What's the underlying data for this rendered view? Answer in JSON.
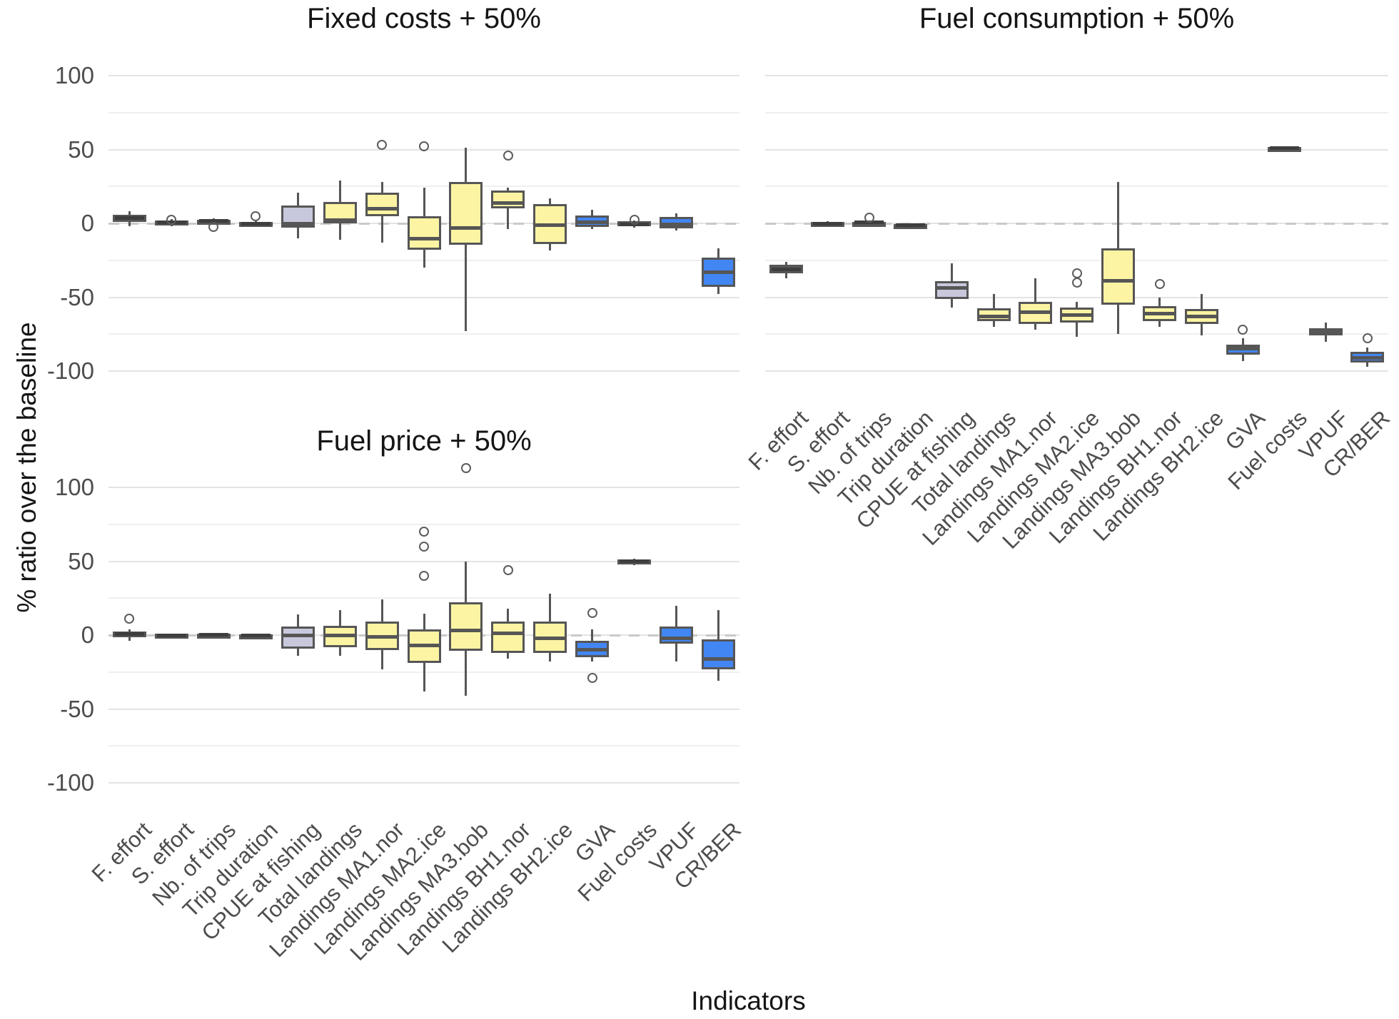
{
  "figure": {
    "y_axis_title": "% ratio over the baseline",
    "x_axis_title": "Indicators",
    "y_ticks": [
      100,
      50,
      0,
      -50,
      -100
    ],
    "y_gridlines": [
      -100,
      -75,
      -50,
      -25,
      0,
      25,
      50,
      75,
      100
    ],
    "categories": [
      "F. effort",
      "S. effort",
      "Nb. of trips",
      "Trip duration",
      "CPUE at fishing",
      "Total landings",
      "Landings MA1.nor",
      "Landings MA2.ice",
      "Landings MA3.bob",
      "Landings BH1.nor",
      "Landings BH2.ice",
      "GVA",
      "Fuel costs",
      "VPUF",
      "CR/BER"
    ],
    "category_fill": [
      "dark",
      "dark",
      "dark",
      "dark",
      "lavender",
      "yellow",
      "yellow",
      "yellow",
      "yellow",
      "yellow",
      "yellow",
      "blue",
      "dark",
      "blue",
      "blue"
    ],
    "colors": {
      "dark": "#595959",
      "lavender": "#c7c8dc",
      "yellow": "#fcf4a3",
      "blue": "#4286f4",
      "border": "#565656",
      "median_on_dark": "#3e3e3e",
      "grid_major": "#e3e3e3",
      "grid_minor": "#efefef",
      "baseline_dash": "#c9c9c9",
      "outlier_stroke": "#5c5c5c",
      "tick_text": "#4d4d4d",
      "title_text": "#151515",
      "background": "#ffffff"
    }
  },
  "chart_data": [
    {
      "type": "box",
      "title": "Fixed costs + 50%",
      "position": "top-left",
      "ylim": [
        -120,
        122
      ],
      "grid": true,
      "baseline": 0,
      "boxes": [
        {
          "category": "F. effort",
          "low": -2,
          "q1": 1,
          "median": 3.5,
          "q3": 6,
          "high": 8,
          "outliers": []
        },
        {
          "category": "S. effort",
          "low": -2,
          "q1": -1,
          "median": 0.5,
          "q3": 2,
          "high": 3,
          "outliers": [
            2.5
          ]
        },
        {
          "category": "Nb. of trips",
          "low": 0,
          "q1": 0.8,
          "median": 1.7,
          "q3": 2.5,
          "high": 3.2,
          "outliers": [
            -2.5
          ]
        },
        {
          "category": "Trip duration",
          "low": -2.2,
          "q1": -1.5,
          "median": -0.2,
          "q3": 0.8,
          "high": 1.5,
          "outliers": [
            4.8
          ]
        },
        {
          "category": "CPUE at fishing",
          "low": -10,
          "q1": -3,
          "median": 0,
          "q3": 12,
          "high": 21,
          "outliers": []
        },
        {
          "category": "Total landings",
          "low": -11,
          "q1": 0,
          "median": 2,
          "q3": 14.5,
          "high": 29,
          "outliers": []
        },
        {
          "category": "Landings MA1.nor",
          "low": -13,
          "q1": 5,
          "median": 10,
          "q3": 21,
          "high": 28,
          "outliers": [
            53
          ]
        },
        {
          "category": "Landings MA2.ice",
          "low": -30,
          "q1": -18,
          "median": -10.5,
          "q3": 5,
          "high": 24,
          "outliers": [
            52
          ]
        },
        {
          "category": "Landings MA3.bob",
          "low": -73,
          "q1": -14.5,
          "median": -3,
          "q3": 28,
          "high": 51,
          "outliers": []
        },
        {
          "category": "Landings BH1.nor",
          "low": -4,
          "q1": 10,
          "median": 14,
          "q3": 22,
          "high": 24,
          "outliers": [
            46
          ]
        },
        {
          "category": "Landings BH2.ice",
          "low": -18.5,
          "q1": -14,
          "median": -1,
          "q3": 13,
          "high": 17,
          "outliers": []
        },
        {
          "category": "GVA",
          "low": -4,
          "q1": -2.5,
          "median": 0.5,
          "q3": 5.5,
          "high": 9,
          "outliers": []
        },
        {
          "category": "Fuel costs",
          "low": -3,
          "q1": -2,
          "median": -0.5,
          "q3": 1.5,
          "high": 2,
          "outliers": [
            2.5
          ]
        },
        {
          "category": "VPUF",
          "low": -5,
          "q1": -3.5,
          "median": -0.6,
          "q3": 4.5,
          "high": 7,
          "outliers": []
        },
        {
          "category": "CR/BER",
          "low": -48,
          "q1": -43,
          "median": -33,
          "q3": -23,
          "high": -17,
          "outliers": []
        }
      ]
    },
    {
      "type": "box",
      "title": "Fuel consumption + 50%",
      "position": "top-right",
      "ylim": [
        -120,
        122
      ],
      "grid": true,
      "baseline": 0,
      "boxes": [
        {
          "category": "F. effort",
          "low": -37,
          "q1": -34,
          "median": -31,
          "q3": -28,
          "high": -26,
          "outliers": []
        },
        {
          "category": "S. effort",
          "low": -1.5,
          "q1": -1,
          "median": 0,
          "q3": 1,
          "high": 1.5,
          "outliers": []
        },
        {
          "category": "Nb. of trips",
          "low": -0.5,
          "q1": 0,
          "median": 0.6,
          "q3": 1.2,
          "high": 1.8,
          "outliers": [
            4
          ]
        },
        {
          "category": "Trip duration",
          "low": -3,
          "q1": -2.3,
          "median": -1.4,
          "q3": -0.4,
          "high": 0.2,
          "outliers": []
        },
        {
          "category": "CPUE at fishing",
          "low": -57,
          "q1": -51,
          "median": -43.5,
          "q3": -39,
          "high": -27,
          "outliers": []
        },
        {
          "category": "Total landings",
          "low": -70,
          "q1": -66,
          "median": -63,
          "q3": -57.5,
          "high": -48,
          "outliers": []
        },
        {
          "category": "Landings MA1.nor",
          "low": -72,
          "q1": -68,
          "median": -60,
          "q3": -53,
          "high": -37,
          "outliers": []
        },
        {
          "category": "Landings MA2.ice",
          "low": -77,
          "q1": -67,
          "median": -62,
          "q3": -57,
          "high": -53,
          "outliers": [
            -34,
            -40
          ]
        },
        {
          "category": "Landings MA3.bob",
          "low": -75,
          "q1": -55,
          "median": -39,
          "q3": -17,
          "high": 28,
          "outliers": []
        },
        {
          "category": "Landings BH1.nor",
          "low": -70,
          "q1": -66,
          "median": -61,
          "q3": -56,
          "high": -50,
          "outliers": [
            -41
          ]
        },
        {
          "category": "Landings BH2.ice",
          "low": -76,
          "q1": -68,
          "median": -63,
          "q3": -58,
          "high": -48,
          "outliers": []
        },
        {
          "category": "GVA",
          "low": -93,
          "q1": -89,
          "median": -85,
          "q3": -82,
          "high": -78,
          "outliers": [
            -72
          ]
        },
        {
          "category": "Fuel costs",
          "low": 49.5,
          "q1": 50.2,
          "median": 51,
          "q3": 51.8,
          "high": 52.2,
          "outliers": []
        },
        {
          "category": "VPUF",
          "low": -80,
          "q1": -76,
          "median": -73.5,
          "q3": -71,
          "high": -67,
          "outliers": []
        },
        {
          "category": "CR/BER",
          "low": -97,
          "q1": -94,
          "median": -91,
          "q3": -87,
          "high": -84,
          "outliers": [
            -78
          ]
        }
      ]
    },
    {
      "type": "box",
      "title": "Fuel price + 50%",
      "position": "bottom-left",
      "ylim": [
        -120,
        122
      ],
      "grid": true,
      "baseline": 0,
      "boxes": [
        {
          "category": "F. effort",
          "low": -4,
          "q1": -1.5,
          "median": 0.5,
          "q3": 2.5,
          "high": 4,
          "outliers": [
            11
          ]
        },
        {
          "category": "S. effort",
          "low": -1.2,
          "q1": -0.8,
          "median": 0,
          "q3": 0.8,
          "high": 1.2,
          "outliers": []
        },
        {
          "category": "Nb. of trips",
          "low": -1,
          "q1": -0.5,
          "median": 0.3,
          "q3": 1,
          "high": 1.5,
          "outliers": []
        },
        {
          "category": "Trip duration",
          "low": -1.5,
          "q1": -1,
          "median": -0.2,
          "q3": 0.5,
          "high": 1,
          "outliers": []
        },
        {
          "category": "CPUE at fishing",
          "low": -14,
          "q1": -9,
          "median": 0,
          "q3": 6,
          "high": 14,
          "outliers": []
        },
        {
          "category": "Total landings",
          "low": -14,
          "q1": -8,
          "median": 0,
          "q3": 6.5,
          "high": 17,
          "outliers": []
        },
        {
          "category": "Landings MA1.nor",
          "low": -23,
          "q1": -10,
          "median": -1,
          "q3": 9,
          "high": 24,
          "outliers": []
        },
        {
          "category": "Landings MA2.ice",
          "low": -38,
          "q1": -19,
          "median": -7,
          "q3": 4,
          "high": 14.5,
          "outliers": [
            70,
            60,
            40
          ]
        },
        {
          "category": "Landings MA3.bob",
          "low": -41,
          "q1": -10.5,
          "median": 3,
          "q3": 22,
          "high": 50,
          "outliers": [
            113
          ]
        },
        {
          "category": "Landings BH1.nor",
          "low": -16,
          "q1": -12,
          "median": 1,
          "q3": 9,
          "high": 18,
          "outliers": [
            44
          ]
        },
        {
          "category": "Landings BH2.ice",
          "low": -18,
          "q1": -12,
          "median": -2,
          "q3": 9,
          "high": 28,
          "outliers": []
        },
        {
          "category": "GVA",
          "low": -18,
          "q1": -15,
          "median": -10,
          "q3": -4,
          "high": 4,
          "outliers": [
            15,
            -29
          ]
        },
        {
          "category": "Fuel costs",
          "low": 47.5,
          "q1": 48.2,
          "median": 49.8,
          "q3": 51,
          "high": 51.5,
          "outliers": []
        },
        {
          "category": "VPUF",
          "low": -18,
          "q1": -6,
          "median": -2,
          "q3": 6,
          "high": 20,
          "outliers": []
        },
        {
          "category": "CR/BER",
          "low": -31,
          "q1": -23,
          "median": -16,
          "q3": -3,
          "high": 17,
          "outliers": []
        }
      ]
    }
  ]
}
